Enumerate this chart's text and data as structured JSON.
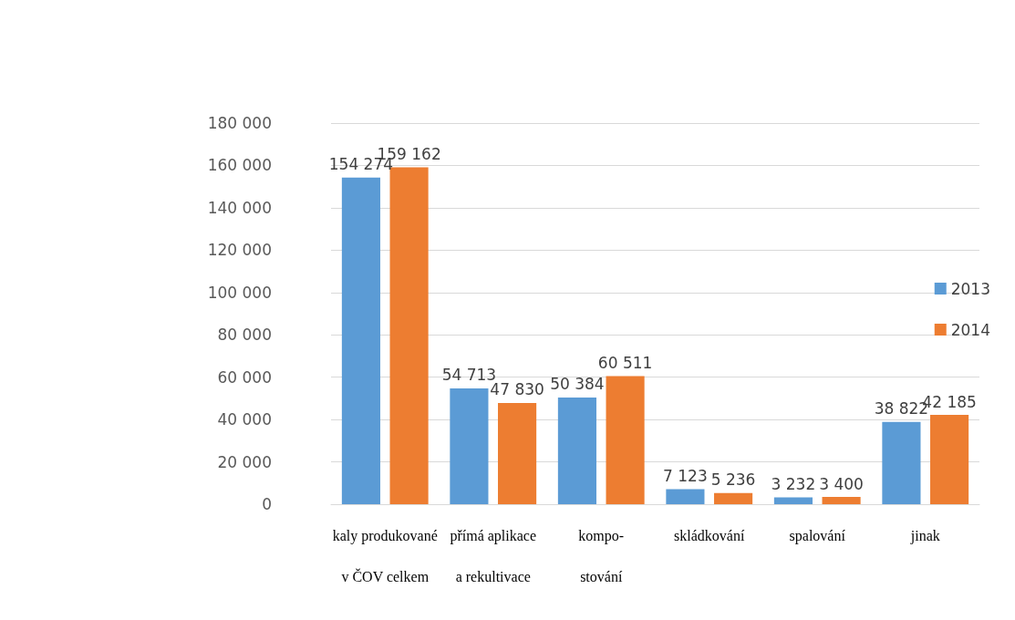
{
  "chart_data": {
    "type": "bar",
    "categories": [
      "kaly produkované\nv ČOV celkem",
      "přímá aplikace\na rekultivace",
      "kompo-\nstování",
      "skládkování",
      "spalování",
      "jinak"
    ],
    "series": [
      {
        "name": "2013",
        "color": "#5b9bd5",
        "values": [
          154274,
          54713,
          50384,
          7123,
          3232,
          38822
        ],
        "value_labels": [
          "154 274",
          "54 713",
          "50 384",
          "7 123",
          "3 232",
          "38 822"
        ]
      },
      {
        "name": "2014",
        "color": "#ed7d31",
        "values": [
          159162,
          47830,
          60511,
          5236,
          3400,
          42185
        ],
        "value_labels": [
          "159 162",
          "47 830",
          "60 511",
          "5 236",
          "3 400",
          "42 185"
        ]
      }
    ],
    "ylim": [
      0,
      180000
    ],
    "yticks": [
      0,
      20000,
      40000,
      60000,
      80000,
      100000,
      120000,
      140000,
      160000,
      180000
    ],
    "grid": "y",
    "legend": "right"
  }
}
